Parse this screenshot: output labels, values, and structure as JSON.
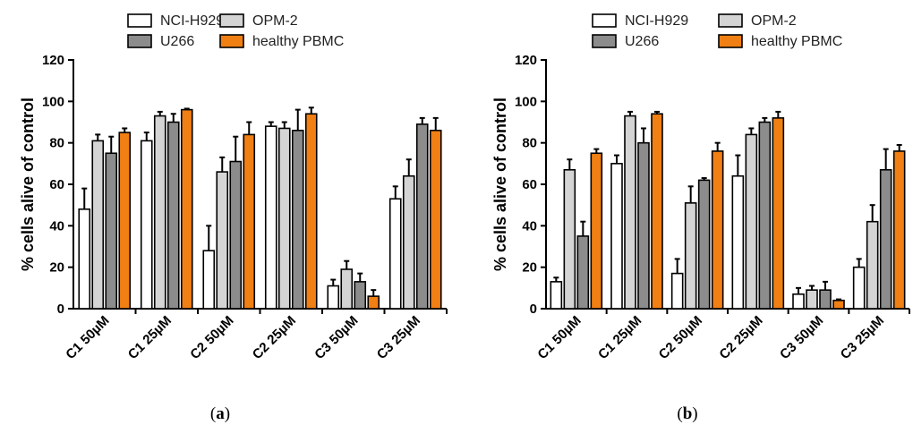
{
  "chart_data": [
    {
      "type": "bar",
      "panel_label": "a",
      "ylabel": "% cells alive of control",
      "ylim": [
        0,
        120
      ],
      "yticks": [
        0,
        20,
        40,
        60,
        80,
        100,
        120
      ],
      "categories": [
        "C1 50µM",
        "C1 25µM",
        "C2 50µM",
        "C2 25µM",
        "C3 50µM",
        "C3 25µM"
      ],
      "error_bars": true,
      "legend_position": "top",
      "series": [
        {
          "name": "NCI-H929",
          "color": "#ffffff",
          "values": [
            48,
            81,
            28,
            88,
            11,
            53
          ],
          "errors": [
            10,
            4,
            12,
            2,
            3,
            6
          ]
        },
        {
          "name": "OPM-2",
          "color": "#d4d4d4",
          "values": [
            81,
            93,
            66,
            87,
            19,
            64
          ],
          "errors": [
            3,
            2,
            7,
            3,
            4,
            8
          ]
        },
        {
          "name": "U266",
          "color": "#8c8c8c",
          "values": [
            75,
            90,
            71,
            86,
            13,
            89
          ],
          "errors": [
            8,
            4,
            12,
            10,
            4,
            3
          ]
        },
        {
          "name": "healthy PBMC",
          "color": "#f07f14",
          "values": [
            85,
            96,
            84,
            94,
            6,
            86
          ],
          "errors": [
            2,
            0.5,
            6,
            3,
            3,
            6
          ]
        }
      ]
    },
    {
      "type": "bar",
      "panel_label": "b",
      "ylabel": "% cells alive of control",
      "ylim": [
        0,
        120
      ],
      "yticks": [
        0,
        20,
        40,
        60,
        80,
        100,
        120
      ],
      "categories": [
        "C1 50µM",
        "C1 25µM",
        "C2 50µM",
        "C2 25µM",
        "C3 50µM",
        "C3 25µM"
      ],
      "error_bars": true,
      "legend_position": "top",
      "series": [
        {
          "name": "NCI-H929",
          "color": "#ffffff",
          "values": [
            13,
            70,
            17,
            64,
            7,
            20
          ],
          "errors": [
            2,
            4,
            7,
            10,
            3,
            4
          ]
        },
        {
          "name": "OPM-2",
          "color": "#d4d4d4",
          "values": [
            67,
            93,
            51,
            84,
            9,
            42
          ],
          "errors": [
            5,
            2,
            8,
            3,
            2,
            8
          ]
        },
        {
          "name": "U266",
          "color": "#8c8c8c",
          "values": [
            35,
            80,
            62,
            90,
            9,
            67
          ],
          "errors": [
            7,
            7,
            1,
            2,
            4,
            10
          ]
        },
        {
          "name": "healthy PBMC",
          "color": "#f07f14",
          "values": [
            75,
            94,
            76,
            92,
            4,
            76
          ],
          "errors": [
            2,
            1,
            4,
            3,
            0.5,
            3
          ]
        }
      ]
    }
  ]
}
